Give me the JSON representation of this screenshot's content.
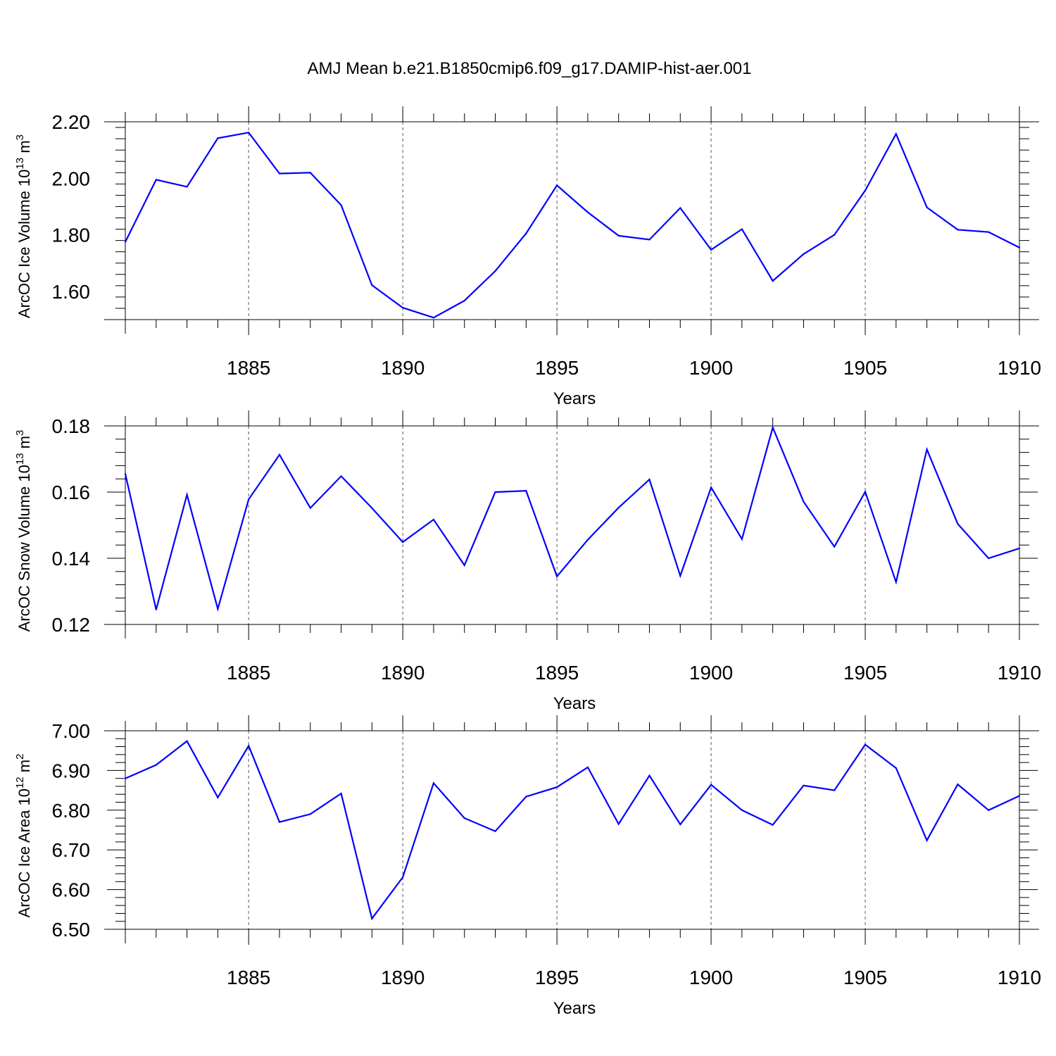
{
  "title": "AMJ Mean b.e21.B1850cmip6.f09_g17.DAMIP-hist-aer.001",
  "colors": {
    "line": "#0000ff",
    "axis": "#000000",
    "grid": "#555555"
  },
  "chart_data": [
    {
      "type": "line",
      "ylabel": {
        "main": "ArcOC Ice Volume 10",
        "exp": "13",
        "unit": " m",
        "unit_exp": "3"
      },
      "xlabel": "Years",
      "xlim": [
        1881,
        1910
      ],
      "ylim": [
        1.5,
        2.2
      ],
      "yticks": [
        "1.60",
        "1.80",
        "2.00",
        "2.20"
      ],
      "ytick_values": [
        1.6,
        1.8,
        2.0,
        2.2
      ],
      "xticks": [
        1885,
        1890,
        1895,
        1900,
        1905,
        1910
      ],
      "grid": "x-dashed",
      "x": [
        1881,
        1882,
        1883,
        1884,
        1885,
        1886,
        1887,
        1888,
        1889,
        1890,
        1891,
        1892,
        1893,
        1894,
        1895,
        1896,
        1897,
        1898,
        1899,
        1900,
        1901,
        1902,
        1903,
        1904,
        1905,
        1906,
        1907,
        1908,
        1909,
        1910
      ],
      "values": [
        1.775,
        1.995,
        1.97,
        2.142,
        2.162,
        2.017,
        2.02,
        1.905,
        1.622,
        1.542,
        1.507,
        1.567,
        1.672,
        1.805,
        1.975,
        1.88,
        1.797,
        1.783,
        1.895,
        1.747,
        1.82,
        1.637,
        1.732,
        1.8,
        1.957,
        2.157,
        1.897,
        1.818,
        1.81,
        1.755
      ]
    },
    {
      "type": "line",
      "ylabel": {
        "main": "ArcOC Snow Volume 10",
        "exp": "13",
        "unit": " m",
        "unit_exp": "3"
      },
      "xlabel": "Years",
      "xlim": [
        1881,
        1910
      ],
      "ylim": [
        0.12,
        0.18
      ],
      "yticks": [
        "0.12",
        "0.14",
        "0.16",
        "0.18"
      ],
      "ytick_values": [
        0.12,
        0.14,
        0.16,
        0.18
      ],
      "xticks": [
        1885,
        1890,
        1895,
        1900,
        1905,
        1910
      ],
      "grid": "x-dashed",
      "x": [
        1881,
        1882,
        1883,
        1884,
        1885,
        1886,
        1887,
        1888,
        1889,
        1890,
        1891,
        1892,
        1893,
        1894,
        1895,
        1896,
        1897,
        1898,
        1899,
        1900,
        1901,
        1902,
        1903,
        1904,
        1905,
        1906,
        1907,
        1908,
        1909,
        1910
      ],
      "values": [
        0.1655,
        0.1245,
        0.1592,
        0.1247,
        0.1578,
        0.1713,
        0.1552,
        0.1648,
        0.1552,
        0.1449,
        0.1517,
        0.1379,
        0.16,
        0.1604,
        0.1345,
        0.1456,
        0.1553,
        0.1638,
        0.1347,
        0.1614,
        0.1458,
        0.1795,
        0.1571,
        0.1435,
        0.1601,
        0.1328,
        0.1729,
        0.1504,
        0.14,
        0.143
      ]
    },
    {
      "type": "line",
      "ylabel": {
        "main": "ArcOC Ice Area 10",
        "exp": "12",
        "unit": " m",
        "unit_exp": "2"
      },
      "xlabel": "Years",
      "xlim": [
        1881,
        1910
      ],
      "ylim": [
        6.5,
        7.0
      ],
      "yticks": [
        "6.50",
        "6.60",
        "6.70",
        "6.80",
        "6.90",
        "7.00"
      ],
      "ytick_values": [
        6.5,
        6.6,
        6.7,
        6.8,
        6.9,
        7.0
      ],
      "xticks": [
        1885,
        1890,
        1895,
        1900,
        1905,
        1910
      ],
      "grid": "x-dashed",
      "x": [
        1881,
        1882,
        1883,
        1884,
        1885,
        1886,
        1887,
        1888,
        1889,
        1890,
        1891,
        1892,
        1893,
        1894,
        1895,
        1896,
        1897,
        1898,
        1899,
        1900,
        1901,
        1902,
        1903,
        1904,
        1905,
        1906,
        1907,
        1908,
        1909,
        1910
      ],
      "values": [
        6.88,
        6.914,
        6.974,
        6.832,
        6.962,
        6.77,
        6.79,
        6.842,
        6.527,
        6.631,
        6.868,
        6.78,
        6.747,
        6.834,
        6.858,
        6.908,
        6.765,
        6.887,
        6.764,
        6.864,
        6.8,
        6.763,
        6.862,
        6.85,
        6.965,
        6.906,
        6.724,
        6.865,
        6.8,
        6.836
      ]
    }
  ]
}
